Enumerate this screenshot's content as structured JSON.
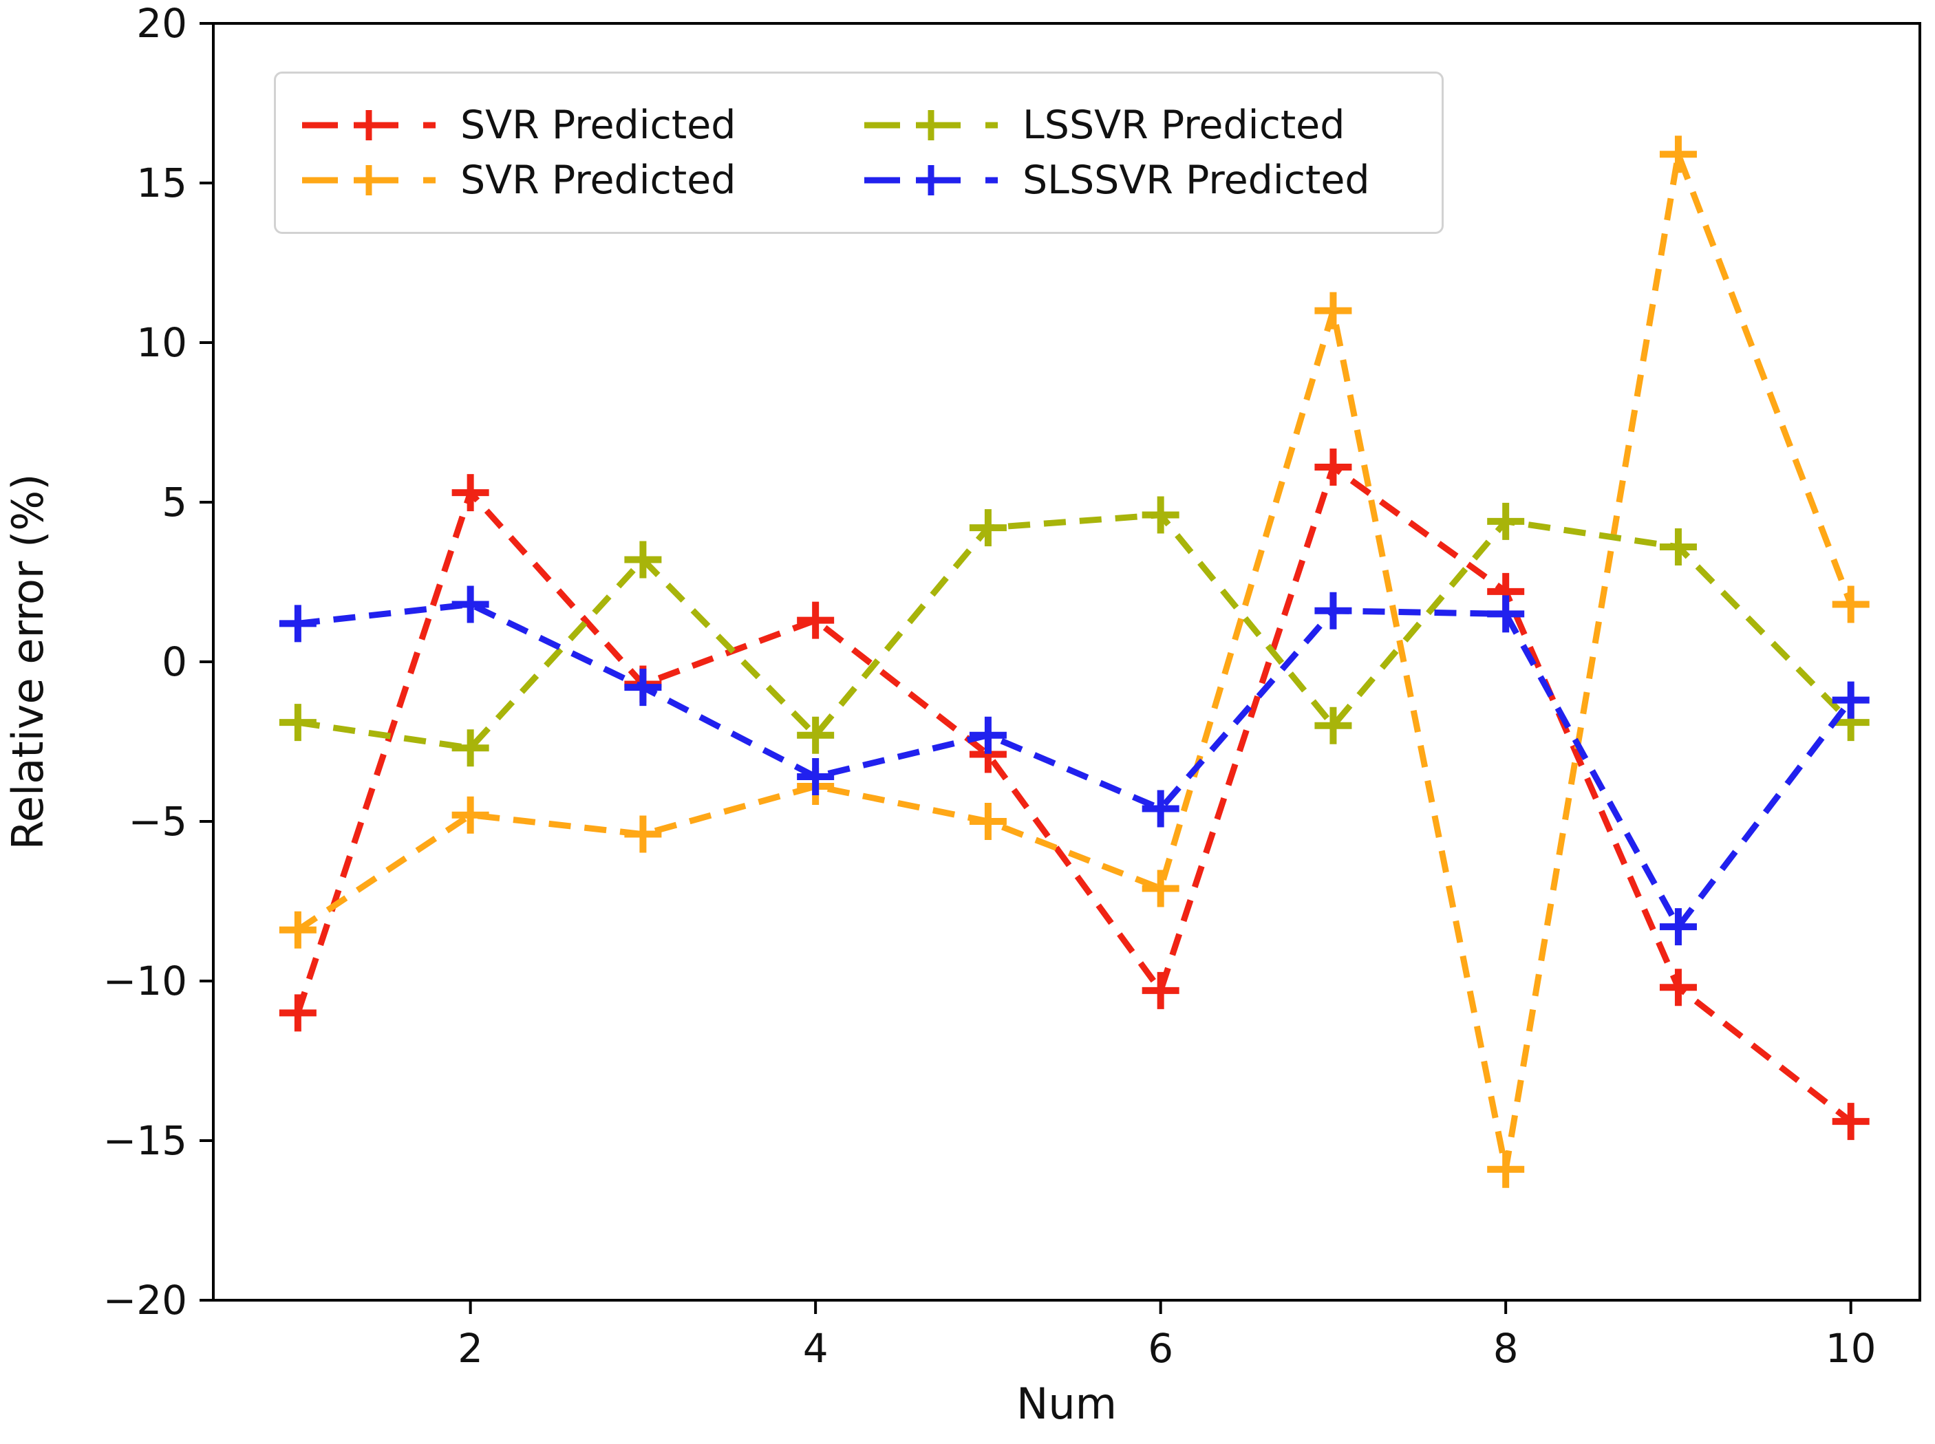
{
  "figure": {
    "background": "#ffffff",
    "spine_color": "#000000",
    "tick_color": "#111111"
  },
  "chart_data": {
    "type": "line",
    "title": "",
    "xlabel": "Num",
    "ylabel": "Relative error (%)",
    "x": [
      1,
      2,
      3,
      4,
      5,
      6,
      7,
      8,
      9,
      10
    ],
    "xticks": [
      2,
      4,
      6,
      8,
      10
    ],
    "yticks": [
      -20,
      -15,
      -10,
      -5,
      0,
      5,
      10,
      15,
      20
    ],
    "xlim": [
      0.51,
      10.4
    ],
    "ylim": [
      -20,
      20
    ],
    "grid": false,
    "line_style": "dashed",
    "marker": "plus",
    "legend_position": "upper-left",
    "legend_columns": 2,
    "series": [
      {
        "name": "SVR Predicted",
        "color": "#f02314",
        "values": [
          -11.0,
          5.3,
          -0.7,
          1.3,
          -2.9,
          -10.3,
          6.1,
          2.2,
          -10.2,
          -14.4
        ]
      },
      {
        "name": "SVR Predicted",
        "color": "#ffa716",
        "values": [
          -8.4,
          -4.8,
          -5.4,
          -3.9,
          -5.0,
          -7.1,
          11.0,
          -15.9,
          15.9,
          1.8
        ]
      },
      {
        "name": "LSSVR Predicted",
        "color": "#a8b40a",
        "values": [
          -1.9,
          -2.7,
          3.2,
          -2.3,
          4.2,
          4.6,
          -2.0,
          4.4,
          3.6,
          -1.9
        ]
      },
      {
        "name": "SLSSVR Predicted",
        "color": "#2121ee",
        "values": [
          1.2,
          1.8,
          -0.8,
          -3.6,
          -2.3,
          -4.6,
          1.6,
          1.5,
          -8.3,
          -1.2
        ]
      }
    ]
  }
}
